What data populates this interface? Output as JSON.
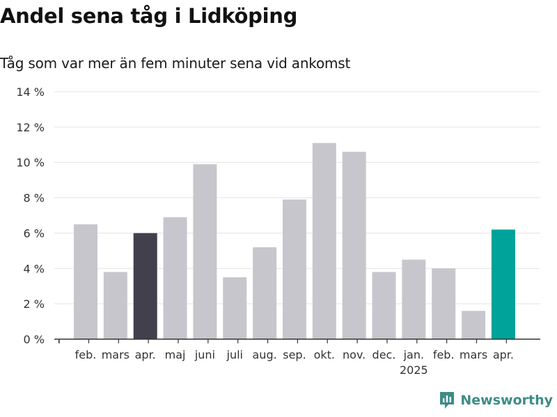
{
  "title": "Andel sena tåg i Lidköping",
  "subtitle": "Tåg som var mer än fem minuter sena vid ankomst",
  "brand": {
    "name": "Newsworthy",
    "icon": "newsworthy-logo-icon",
    "color": "#3d8c86"
  },
  "chart_data": {
    "type": "bar",
    "categories": [
      "feb.",
      "mars",
      "apr.",
      "maj",
      "juni",
      "juli",
      "aug.",
      "sep.",
      "okt.",
      "nov.",
      "dec.",
      "jan.",
      "feb.",
      "mars",
      "apr."
    ],
    "year_labels": [
      {
        "index": 11,
        "label": "2025"
      }
    ],
    "values": [
      6.5,
      3.8,
      6.0,
      6.9,
      9.9,
      3.5,
      5.2,
      7.9,
      11.1,
      10.6,
      3.8,
      4.5,
      4.0,
      1.6,
      6.2
    ],
    "y_ticks": [
      0,
      2,
      4,
      6,
      8,
      10,
      12,
      14
    ],
    "y_tick_labels": [
      "0 %",
      "2 %",
      "4 %",
      "6 %",
      "8 %",
      "10 %",
      "12 %",
      "14 %"
    ],
    "ylim": [
      0,
      14
    ],
    "grid": true,
    "colors": {
      "default": "#c7c6cd",
      "highlight_previous": "#42404d",
      "highlight_current": "#00a399",
      "grid": "#e3e3e3",
      "axis": "#333333"
    },
    "highlights": {
      "2": "highlight_previous",
      "14": "highlight_current"
    }
  }
}
